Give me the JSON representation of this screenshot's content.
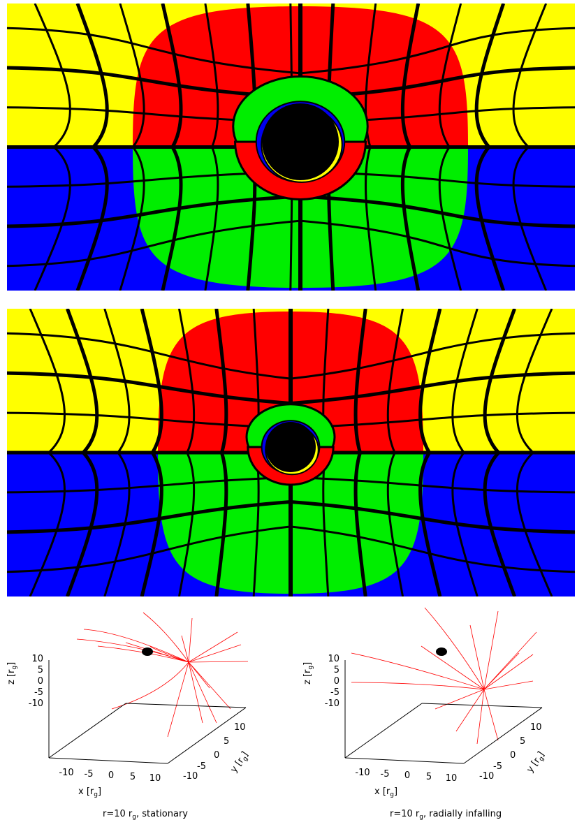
{
  "panels": [
    {
      "id": "top",
      "hemisphere_colors": {
        "upper_outer": "#ffff00",
        "upper_inner": "#ff0000",
        "lower_outer": "#0000ff",
        "lower_inner": "#00ee00"
      }
    },
    {
      "id": "middle",
      "hemisphere_colors": {
        "upper_outer": "#ffff00",
        "upper_inner": "#ff0000",
        "lower_outer": "#0000ff",
        "lower_inner": "#00ee00"
      }
    }
  ],
  "plots": [
    {
      "caption_pre": "r=10 r",
      "caption_sub": "g",
      "caption_post": ", stationary",
      "z_label": "z [r",
      "x_label": "x [r",
      "y_label": "y [r",
      "label_sub": "g",
      "label_close": "]",
      "z_ticks": [
        "10",
        "5",
        "0",
        "-5",
        "-10"
      ],
      "x_ticks": [
        "-10",
        "-5",
        "0",
        "5",
        "10"
      ],
      "y_ticks": [
        "-10",
        "-5",
        "0",
        "5",
        "10"
      ]
    },
    {
      "caption_pre": "r=10 r",
      "caption_sub": "g",
      "caption_post": ", radially infalling",
      "z_label": "z [r",
      "x_label": "x [r",
      "y_label": "y [r",
      "label_sub": "g",
      "label_close": "]",
      "z_ticks": [
        "10",
        "5",
        "0",
        "-5",
        "-10"
      ],
      "x_ticks": [
        "-10",
        "-5",
        "0",
        "5",
        "10"
      ],
      "y_ticks": [
        "-10",
        "-5",
        "0",
        "5",
        "10"
      ]
    }
  ],
  "colors": {
    "ray": "#ff0000",
    "hole": "#000000",
    "grid": "#000000"
  }
}
